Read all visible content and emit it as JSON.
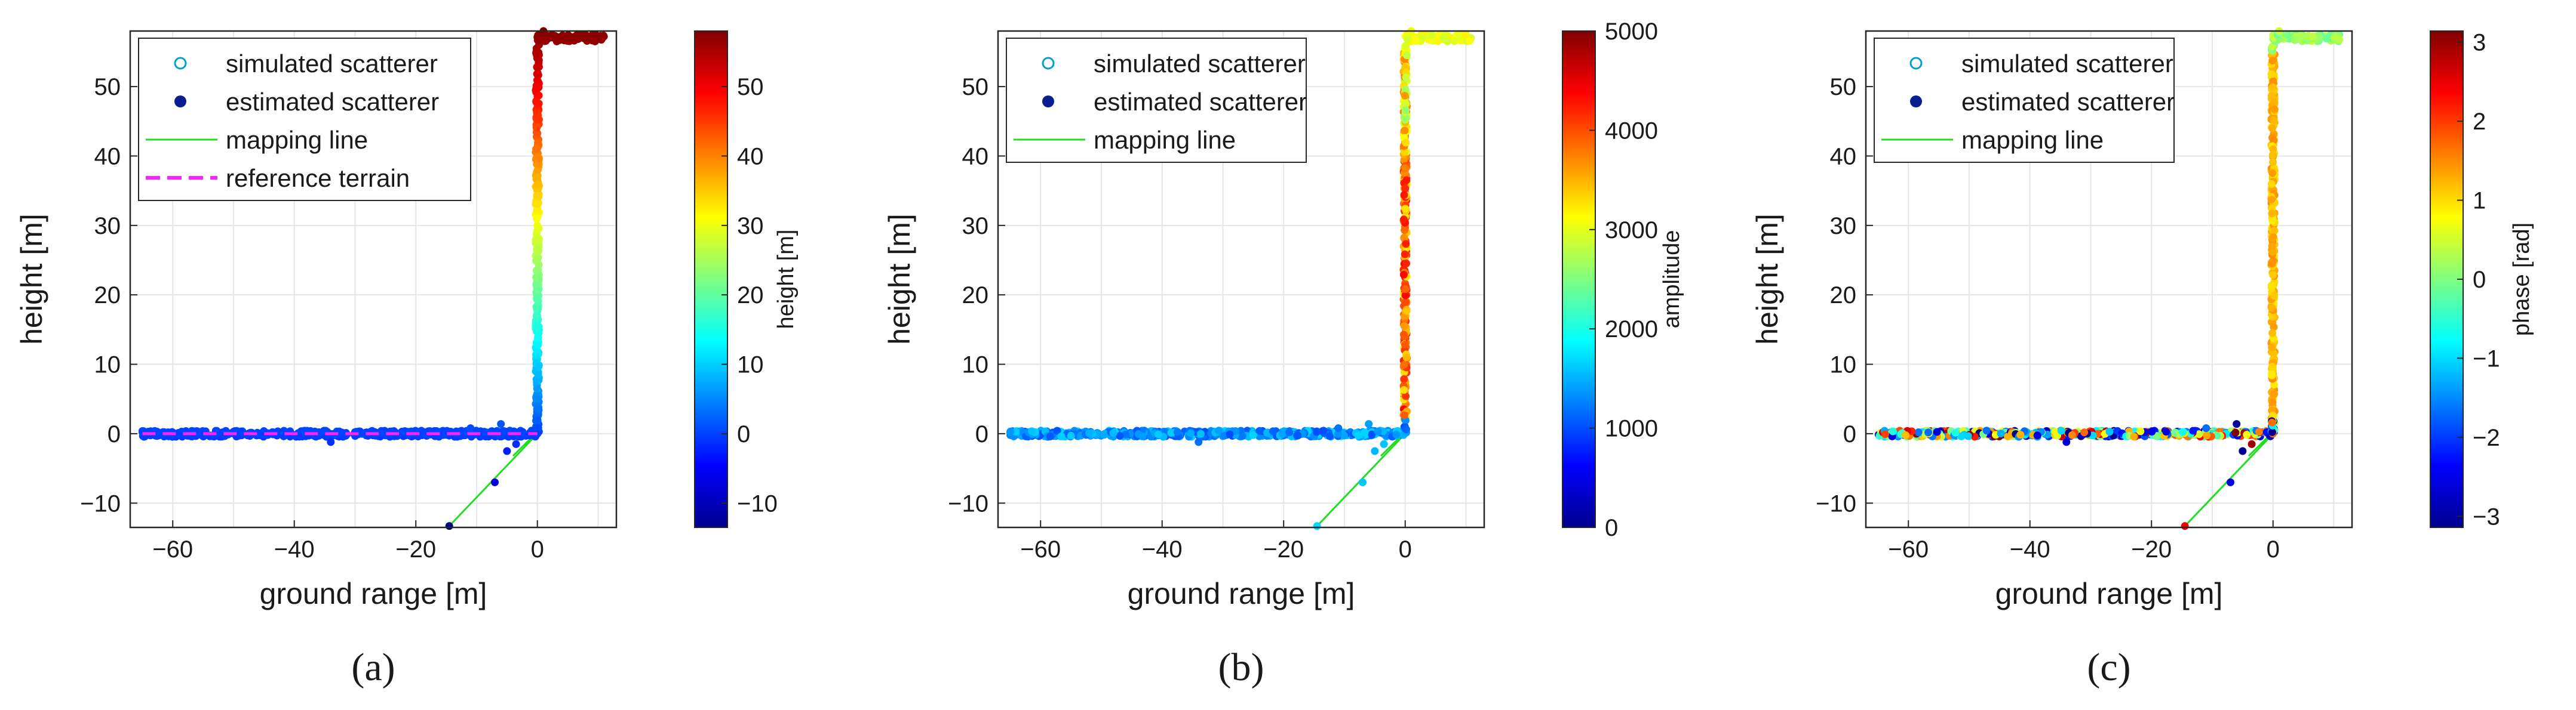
{
  "chart_data": [
    {
      "type": "scatter",
      "panel_label": "a",
      "xlabel": "ground range [m]",
      "ylabel": "height [m]",
      "xlim": [
        -67,
        13
      ],
      "ylim": [
        -13.5,
        58
      ],
      "xticks": [
        -60,
        -40,
        -20,
        0
      ],
      "yticks": [
        -10,
        0,
        10,
        20,
        30,
        40,
        50
      ],
      "grid": true,
      "legend_position": "top-left",
      "legend": [
        "simulated scatterer",
        "estimated scatterer",
        "mapping line",
        "reference terrain"
      ],
      "colorbar": {
        "label": "height [m]",
        "range": [
          -13.5,
          58
        ],
        "ticks": [
          -10,
          0,
          10,
          20,
          30,
          40,
          50
        ]
      },
      "color_variable": "height",
      "series": [
        {
          "name": "simulated scatterer (ground)",
          "x_range": [
            -65,
            0
          ],
          "y": 0
        },
        {
          "name": "simulated scatterer (wall)",
          "x": 0,
          "y_range": [
            0,
            56
          ]
        },
        {
          "name": "simulated scatterer (roof)",
          "x_range": [
            0,
            11
          ],
          "y": 57
        },
        {
          "name": "mapping line",
          "points": [
            [
              -14.5,
              -13.3
            ],
            [
              0,
              0
            ]
          ]
        },
        {
          "name": "reference terrain",
          "x_range": [
            -65,
            0
          ],
          "y": 0
        },
        {
          "name": "estimated outliers",
          "points": [
            [
              -14.5,
              -13.3
            ],
            [
              -7,
              -7
            ],
            [
              -5,
              -2.5
            ],
            [
              -3.5,
              -1.5
            ],
            [
              -34,
              -1.2
            ],
            [
              -11,
              0.8
            ],
            [
              -6,
              1.4
            ],
            [
              1,
              58
            ]
          ]
        }
      ]
    },
    {
      "type": "scatter",
      "panel_label": "b",
      "xlabel": "ground range [m]",
      "ylabel": "height [m]",
      "xlim": [
        -67,
        13
      ],
      "ylim": [
        -13.5,
        58
      ],
      "xticks": [
        -60,
        -40,
        -20,
        0
      ],
      "yticks": [
        -10,
        0,
        10,
        20,
        30,
        40,
        50
      ],
      "grid": true,
      "legend_position": "top-left",
      "legend": [
        "simulated scatterer",
        "estimated scatterer",
        "mapping line"
      ],
      "colorbar": {
        "label": "amplitude",
        "range": [
          0,
          5000
        ],
        "ticks": [
          0,
          1000,
          2000,
          3000,
          4000,
          5000
        ]
      },
      "color_variable": "amplitude",
      "series": [
        {
          "name": "simulated scatterer (ground)",
          "x_range": [
            -65,
            0
          ],
          "y": 0,
          "amplitude_approx": 1300
        },
        {
          "name": "simulated scatterer (wall)",
          "x": 0,
          "y_range": [
            0,
            56
          ],
          "amplitude_approx": 3600
        },
        {
          "name": "simulated scatterer (roof)",
          "x_range": [
            0,
            11
          ],
          "y": 57,
          "amplitude_approx": 2900
        },
        {
          "name": "mapping line",
          "points": [
            [
              -14.5,
              -13.3
            ],
            [
              0,
              0
            ]
          ]
        },
        {
          "name": "estimated outliers",
          "points": [
            [
              -14.5,
              -13.3
            ],
            [
              -7,
              -7
            ],
            [
              -5,
              -2.5
            ],
            [
              -3.5,
              -1.5
            ],
            [
              -34,
              -1.2
            ],
            [
              -11,
              0.8
            ],
            [
              -6,
              1.4
            ],
            [
              1,
              58
            ]
          ]
        }
      ]
    },
    {
      "type": "scatter",
      "panel_label": "c",
      "xlabel": "ground range [m]",
      "ylabel": "height [m]",
      "xlim": [
        -67,
        13
      ],
      "ylim": [
        -13.5,
        58
      ],
      "xticks": [
        -60,
        -40,
        -20,
        0
      ],
      "yticks": [
        -10,
        0,
        10,
        20,
        30,
        40,
        50
      ],
      "grid": true,
      "legend_position": "top-left",
      "legend": [
        "simulated scatterer",
        "estimated scatterer",
        "mapping line"
      ],
      "colorbar": {
        "label": "phase [rad]",
        "range": [
          -3.14159,
          3.14159
        ],
        "ticks": [
          -3,
          -2,
          -1,
          0,
          1,
          2,
          3
        ]
      },
      "color_variable": "phase",
      "series": [
        {
          "name": "simulated scatterer (ground)",
          "x_range": [
            -65,
            0
          ],
          "y": 0,
          "phase": "random"
        },
        {
          "name": "simulated scatterer (wall)",
          "x": 0,
          "y_range": [
            0,
            56
          ],
          "phase_approx": 1.2
        },
        {
          "name": "simulated scatterer (roof)",
          "x_range": [
            0,
            11
          ],
          "y": 57,
          "phase_approx": 0.1
        },
        {
          "name": "mapping line",
          "points": [
            [
              -14.5,
              -13.3
            ],
            [
              0,
              0
            ]
          ]
        },
        {
          "name": "estimated outliers",
          "points": [
            [
              -14.5,
              -13.3
            ],
            [
              -7,
              -7
            ],
            [
              -5,
              -2.5
            ],
            [
              -3.5,
              -1.5
            ],
            [
              -34,
              -1.2
            ],
            [
              -11,
              0.8
            ],
            [
              -6,
              1.4
            ],
            [
              1,
              58
            ]
          ]
        }
      ]
    }
  ],
  "captions": [
    "(a)",
    "(b)",
    "(c)"
  ],
  "colors": {
    "mapping_line": "#22dd22",
    "reference_terrain": "#ff22ff",
    "estimated_marker": "#0a1f8f",
    "grid": "#e6e6e6"
  }
}
